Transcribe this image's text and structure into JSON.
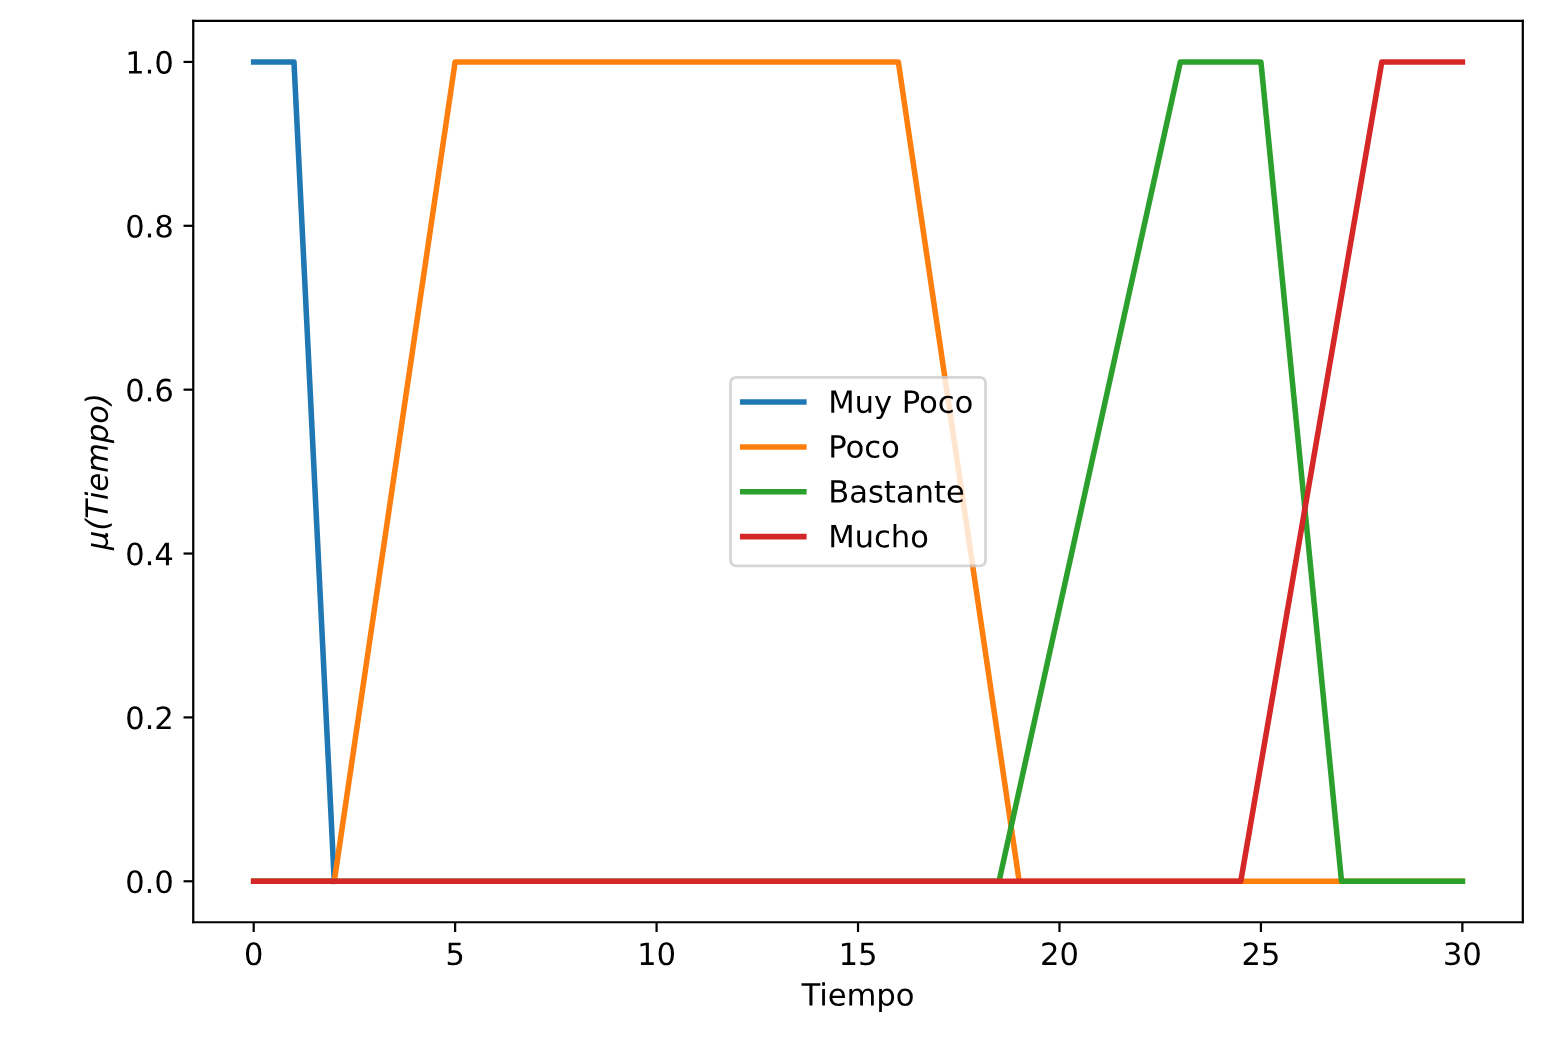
{
  "chart_data": {
    "type": "line",
    "xlabel": "Tiempo",
    "ylabel": "μ(Tiempo)",
    "series": [
      {
        "name": "Muy Poco",
        "color": "#1f77b4",
        "x": [
          0,
          1,
          2
        ],
        "values": [
          1,
          1,
          0
        ]
      },
      {
        "name": "Poco",
        "color": "#ff7f0e",
        "x": [
          0,
          2,
          5,
          16,
          19,
          30
        ],
        "values": [
          0,
          0,
          1,
          1,
          0,
          0
        ]
      },
      {
        "name": "Bastante",
        "color": "#2ca02c",
        "x": [
          0,
          18.5,
          23,
          25,
          27,
          30
        ],
        "values": [
          0,
          0,
          1,
          1,
          0,
          0
        ]
      },
      {
        "name": "Mucho",
        "color": "#d62728",
        "x": [
          0,
          24.5,
          28,
          30
        ],
        "values": [
          0,
          0,
          1,
          1
        ]
      }
    ],
    "xlim": [
      -1.5,
      31.5
    ],
    "ylim": [
      -0.05,
      1.05
    ],
    "xticks": [
      0,
      5,
      10,
      15,
      20,
      25,
      30
    ],
    "yticks": [
      {
        "value": 0,
        "label": "0.0"
      },
      {
        "value": 0.2,
        "label": "0.2"
      },
      {
        "value": 0.4,
        "label": "0.4"
      },
      {
        "value": 0.6,
        "label": "0.6"
      },
      {
        "value": 0.8,
        "label": "0.8"
      },
      {
        "value": 1,
        "label": "1.0"
      }
    ],
    "grid": false,
    "legend": "center",
    "marker": "none",
    "line_style": "solid"
  }
}
